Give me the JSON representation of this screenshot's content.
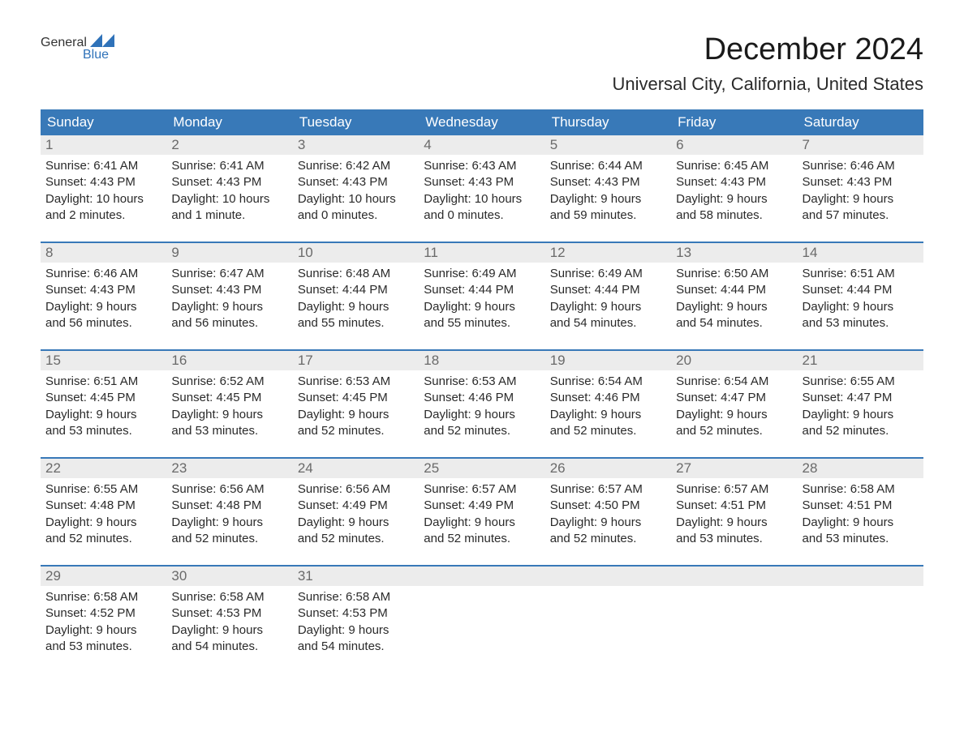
{
  "brand": {
    "name_part1": "General",
    "name_part2": "Blue",
    "color_general": "#333333",
    "color_blue": "#2f72b9",
    "shape_fill": "#2f72b9"
  },
  "title": "December 2024",
  "subtitle": "Universal City, California, United States",
  "colors": {
    "header_bg": "#3879b8",
    "header_text": "#ffffff",
    "daynum_bg": "#ececec",
    "daynum_text": "#6a6a6a",
    "body_text": "#2a2a2a",
    "divider": "#3879b8",
    "page_bg": "#ffffff"
  },
  "typography": {
    "title_fontsize": 38,
    "subtitle_fontsize": 22,
    "dow_fontsize": 17,
    "daynum_fontsize": 17,
    "cell_fontsize": 15
  },
  "days_of_week": [
    "Sunday",
    "Monday",
    "Tuesday",
    "Wednesday",
    "Thursday",
    "Friday",
    "Saturday"
  ],
  "weeks": [
    [
      {
        "num": "1",
        "sunrise": "Sunrise: 6:41 AM",
        "sunset": "Sunset: 4:43 PM",
        "daylight1": "Daylight: 10 hours",
        "daylight2": "and 2 minutes."
      },
      {
        "num": "2",
        "sunrise": "Sunrise: 6:41 AM",
        "sunset": "Sunset: 4:43 PM",
        "daylight1": "Daylight: 10 hours",
        "daylight2": "and 1 minute."
      },
      {
        "num": "3",
        "sunrise": "Sunrise: 6:42 AM",
        "sunset": "Sunset: 4:43 PM",
        "daylight1": "Daylight: 10 hours",
        "daylight2": "and 0 minutes."
      },
      {
        "num": "4",
        "sunrise": "Sunrise: 6:43 AM",
        "sunset": "Sunset: 4:43 PM",
        "daylight1": "Daylight: 10 hours",
        "daylight2": "and 0 minutes."
      },
      {
        "num": "5",
        "sunrise": "Sunrise: 6:44 AM",
        "sunset": "Sunset: 4:43 PM",
        "daylight1": "Daylight: 9 hours",
        "daylight2": "and 59 minutes."
      },
      {
        "num": "6",
        "sunrise": "Sunrise: 6:45 AM",
        "sunset": "Sunset: 4:43 PM",
        "daylight1": "Daylight: 9 hours",
        "daylight2": "and 58 minutes."
      },
      {
        "num": "7",
        "sunrise": "Sunrise: 6:46 AM",
        "sunset": "Sunset: 4:43 PM",
        "daylight1": "Daylight: 9 hours",
        "daylight2": "and 57 minutes."
      }
    ],
    [
      {
        "num": "8",
        "sunrise": "Sunrise: 6:46 AM",
        "sunset": "Sunset: 4:43 PM",
        "daylight1": "Daylight: 9 hours",
        "daylight2": "and 56 minutes."
      },
      {
        "num": "9",
        "sunrise": "Sunrise: 6:47 AM",
        "sunset": "Sunset: 4:43 PM",
        "daylight1": "Daylight: 9 hours",
        "daylight2": "and 56 minutes."
      },
      {
        "num": "10",
        "sunrise": "Sunrise: 6:48 AM",
        "sunset": "Sunset: 4:44 PM",
        "daylight1": "Daylight: 9 hours",
        "daylight2": "and 55 minutes."
      },
      {
        "num": "11",
        "sunrise": "Sunrise: 6:49 AM",
        "sunset": "Sunset: 4:44 PM",
        "daylight1": "Daylight: 9 hours",
        "daylight2": "and 55 minutes."
      },
      {
        "num": "12",
        "sunrise": "Sunrise: 6:49 AM",
        "sunset": "Sunset: 4:44 PM",
        "daylight1": "Daylight: 9 hours",
        "daylight2": "and 54 minutes."
      },
      {
        "num": "13",
        "sunrise": "Sunrise: 6:50 AM",
        "sunset": "Sunset: 4:44 PM",
        "daylight1": "Daylight: 9 hours",
        "daylight2": "and 54 minutes."
      },
      {
        "num": "14",
        "sunrise": "Sunrise: 6:51 AM",
        "sunset": "Sunset: 4:44 PM",
        "daylight1": "Daylight: 9 hours",
        "daylight2": "and 53 minutes."
      }
    ],
    [
      {
        "num": "15",
        "sunrise": "Sunrise: 6:51 AM",
        "sunset": "Sunset: 4:45 PM",
        "daylight1": "Daylight: 9 hours",
        "daylight2": "and 53 minutes."
      },
      {
        "num": "16",
        "sunrise": "Sunrise: 6:52 AM",
        "sunset": "Sunset: 4:45 PM",
        "daylight1": "Daylight: 9 hours",
        "daylight2": "and 53 minutes."
      },
      {
        "num": "17",
        "sunrise": "Sunrise: 6:53 AM",
        "sunset": "Sunset: 4:45 PM",
        "daylight1": "Daylight: 9 hours",
        "daylight2": "and 52 minutes."
      },
      {
        "num": "18",
        "sunrise": "Sunrise: 6:53 AM",
        "sunset": "Sunset: 4:46 PM",
        "daylight1": "Daylight: 9 hours",
        "daylight2": "and 52 minutes."
      },
      {
        "num": "19",
        "sunrise": "Sunrise: 6:54 AM",
        "sunset": "Sunset: 4:46 PM",
        "daylight1": "Daylight: 9 hours",
        "daylight2": "and 52 minutes."
      },
      {
        "num": "20",
        "sunrise": "Sunrise: 6:54 AM",
        "sunset": "Sunset: 4:47 PM",
        "daylight1": "Daylight: 9 hours",
        "daylight2": "and 52 minutes."
      },
      {
        "num": "21",
        "sunrise": "Sunrise: 6:55 AM",
        "sunset": "Sunset: 4:47 PM",
        "daylight1": "Daylight: 9 hours",
        "daylight2": "and 52 minutes."
      }
    ],
    [
      {
        "num": "22",
        "sunrise": "Sunrise: 6:55 AM",
        "sunset": "Sunset: 4:48 PM",
        "daylight1": "Daylight: 9 hours",
        "daylight2": "and 52 minutes."
      },
      {
        "num": "23",
        "sunrise": "Sunrise: 6:56 AM",
        "sunset": "Sunset: 4:48 PM",
        "daylight1": "Daylight: 9 hours",
        "daylight2": "and 52 minutes."
      },
      {
        "num": "24",
        "sunrise": "Sunrise: 6:56 AM",
        "sunset": "Sunset: 4:49 PM",
        "daylight1": "Daylight: 9 hours",
        "daylight2": "and 52 minutes."
      },
      {
        "num": "25",
        "sunrise": "Sunrise: 6:57 AM",
        "sunset": "Sunset: 4:49 PM",
        "daylight1": "Daylight: 9 hours",
        "daylight2": "and 52 minutes."
      },
      {
        "num": "26",
        "sunrise": "Sunrise: 6:57 AM",
        "sunset": "Sunset: 4:50 PM",
        "daylight1": "Daylight: 9 hours",
        "daylight2": "and 52 minutes."
      },
      {
        "num": "27",
        "sunrise": "Sunrise: 6:57 AM",
        "sunset": "Sunset: 4:51 PM",
        "daylight1": "Daylight: 9 hours",
        "daylight2": "and 53 minutes."
      },
      {
        "num": "28",
        "sunrise": "Sunrise: 6:58 AM",
        "sunset": "Sunset: 4:51 PM",
        "daylight1": "Daylight: 9 hours",
        "daylight2": "and 53 minutes."
      }
    ],
    [
      {
        "num": "29",
        "sunrise": "Sunrise: 6:58 AM",
        "sunset": "Sunset: 4:52 PM",
        "daylight1": "Daylight: 9 hours",
        "daylight2": "and 53 minutes."
      },
      {
        "num": "30",
        "sunrise": "Sunrise: 6:58 AM",
        "sunset": "Sunset: 4:53 PM",
        "daylight1": "Daylight: 9 hours",
        "daylight2": "and 54 minutes."
      },
      {
        "num": "31",
        "sunrise": "Sunrise: 6:58 AM",
        "sunset": "Sunset: 4:53 PM",
        "daylight1": "Daylight: 9 hours",
        "daylight2": "and 54 minutes."
      },
      {
        "num": "",
        "sunrise": "",
        "sunset": "",
        "daylight1": "",
        "daylight2": ""
      },
      {
        "num": "",
        "sunrise": "",
        "sunset": "",
        "daylight1": "",
        "daylight2": ""
      },
      {
        "num": "",
        "sunrise": "",
        "sunset": "",
        "daylight1": "",
        "daylight2": ""
      },
      {
        "num": "",
        "sunrise": "",
        "sunset": "",
        "daylight1": "",
        "daylight2": ""
      }
    ]
  ]
}
